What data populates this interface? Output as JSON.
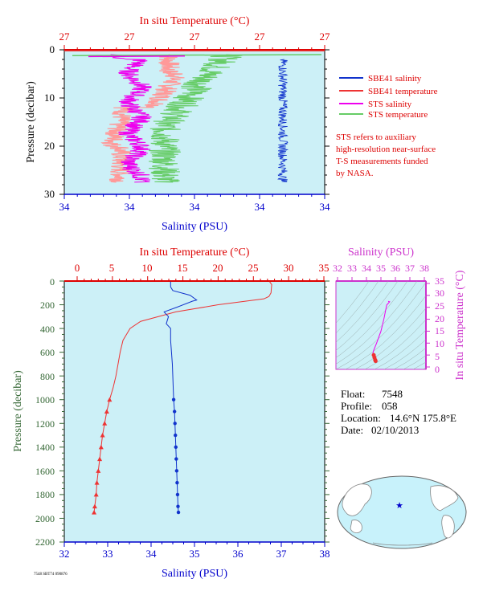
{
  "colors": {
    "background": "#ccf0f7",
    "temperature_axis": "#dd0000",
    "salinity_axis": "#0000cc",
    "pressure_axis": "#336633",
    "sbe41_salinity": "#1133cc",
    "sbe41_temperature": "#ee3333",
    "sts_salinity": "#ee00ee",
    "sts_temperature": "#66cc66",
    "sts_temperature_pink": "#ff9999",
    "ts_axis": "#cc33cc",
    "note_text": "#dd0000"
  },
  "top_panel": {
    "title": "In situ Temperature (°C)",
    "top_ticks": [
      "27",
      "27",
      "27",
      "27",
      "27"
    ],
    "bottom_ticks": [
      "34",
      "34",
      "34",
      "34",
      "34"
    ],
    "xlabel": "Salinity (PSU)",
    "ylabel": "Pressure (decibar)",
    "y_ticks": [
      "0",
      "10",
      "20",
      "30"
    ],
    "legend": [
      {
        "label": "SBE41 salinity",
        "color": "#1133cc"
      },
      {
        "label": "SBE41 temperature",
        "color": "#ee3333"
      },
      {
        "label": "STS salinity",
        "color": "#ee00ee"
      },
      {
        "label": "STS temperature",
        "color": "#66cc66"
      }
    ],
    "note_lines": [
      "STS refers to auxiliary",
      "high-resolution near-surface",
      "T-S measurements funded",
      "by NASA."
    ]
  },
  "main_panel": {
    "title": "In situ Temperature (°C)",
    "top_ticks": [
      "0",
      "5",
      "10",
      "15",
      "20",
      "25",
      "30",
      "35"
    ],
    "bottom_ticks": [
      "32",
      "33",
      "34",
      "35",
      "36",
      "37",
      "38"
    ],
    "xlabel": "Salinity (PSU)",
    "ylabel": "Pressure (decibar)",
    "y_ticks": [
      "0",
      "200",
      "400",
      "600",
      "800",
      "1000",
      "1200",
      "1400",
      "1600",
      "1800",
      "2000",
      "2200"
    ]
  },
  "ts_panel": {
    "title": "Salinity (PSU)",
    "top_ticks": [
      "32",
      "33",
      "34",
      "35",
      "36",
      "37",
      "38"
    ],
    "right_ticks": [
      "0",
      "5",
      "10",
      "15",
      "20",
      "25",
      "30",
      "35"
    ],
    "ylabel": "In situ Temperature (°C)"
  },
  "float_info": {
    "float_label": "Float:",
    "float_value": "7548",
    "profile_label": "Profile:",
    "profile_value": "058",
    "location_label": "Location:",
    "location_value": "14.6°N  175.8°E",
    "date_label": "Date:",
    "date_value": "02/10/2013"
  },
  "footer": {
    "code": "7548 SBT74 090876"
  },
  "chart_data": [
    {
      "type": "line",
      "panel": "main",
      "xlabel": "Salinity (PSU)",
      "x2label": "In situ Temperature (°C)",
      "ylabel": "Pressure (decibar)",
      "xlim": [
        32,
        38
      ],
      "x2lim": [
        0,
        35
      ],
      "ylim": [
        2200,
        0
      ],
      "series": [
        {
          "name": "SBE41 temperature",
          "axis": "temperature",
          "points": [
            [
              27.3,
              5
            ],
            [
              27.6,
              30
            ],
            [
              27.5,
              100
            ],
            [
              27.2,
              130
            ],
            [
              26.5,
              150
            ],
            [
              20,
              200
            ],
            [
              14,
              260
            ],
            [
              9,
              340
            ],
            [
              7.5,
              400
            ],
            [
              7.0,
              450
            ],
            [
              6.5,
              500
            ],
            [
              6.1,
              600
            ],
            [
              5.8,
              700
            ],
            [
              5.5,
              800
            ],
            [
              5.1,
              900
            ],
            [
              4.6,
              1000
            ],
            [
              4.2,
              1100
            ],
            [
              3.9,
              1200
            ],
            [
              3.6,
              1300
            ],
            [
              3.4,
              1400
            ],
            [
              3.2,
              1500
            ],
            [
              3.0,
              1600
            ],
            [
              2.8,
              1700
            ],
            [
              2.7,
              1800
            ],
            [
              2.5,
              1900
            ],
            [
              2.4,
              1950
            ]
          ]
        },
        {
          "name": "SBE41 salinity",
          "axis": "salinity",
          "points": [
            [
              34.45,
              5
            ],
            [
              34.45,
              50
            ],
            [
              34.5,
              80
            ],
            [
              34.9,
              120
            ],
            [
              35.05,
              160
            ],
            [
              34.95,
              170
            ],
            [
              34.6,
              220
            ],
            [
              34.3,
              260
            ],
            [
              34.4,
              300
            ],
            [
              34.35,
              360
            ],
            [
              34.45,
              400
            ],
            [
              34.45,
              500
            ],
            [
              34.47,
              600
            ],
            [
              34.49,
              700
            ],
            [
              34.5,
              800
            ],
            [
              34.51,
              900
            ],
            [
              34.52,
              1000
            ],
            [
              34.54,
              1100
            ],
            [
              34.55,
              1200
            ],
            [
              34.56,
              1300
            ],
            [
              34.57,
              1400
            ],
            [
              34.58,
              1500
            ],
            [
              34.59,
              1600
            ],
            [
              34.6,
              1700
            ],
            [
              34.61,
              1800
            ],
            [
              34.62,
              1900
            ],
            [
              34.63,
              1950
            ]
          ]
        }
      ]
    },
    {
      "type": "scatter",
      "panel": "ts_diagram",
      "xlabel": "Salinity (PSU)",
      "ylabel": "In situ Temperature (°C)",
      "xlim": [
        32,
        38
      ],
      "ylim": [
        0,
        35
      ],
      "points": [
        [
          35.5,
          27.5
        ],
        [
          35.6,
          27.3
        ],
        [
          35.4,
          26
        ],
        [
          35.2,
          20
        ],
        [
          35.0,
          15
        ],
        [
          34.7,
          10
        ],
        [
          34.5,
          7
        ],
        [
          34.45,
          6
        ],
        [
          34.5,
          5
        ],
        [
          34.55,
          4
        ],
        [
          34.6,
          3
        ],
        [
          34.63,
          2.5
        ]
      ]
    }
  ]
}
